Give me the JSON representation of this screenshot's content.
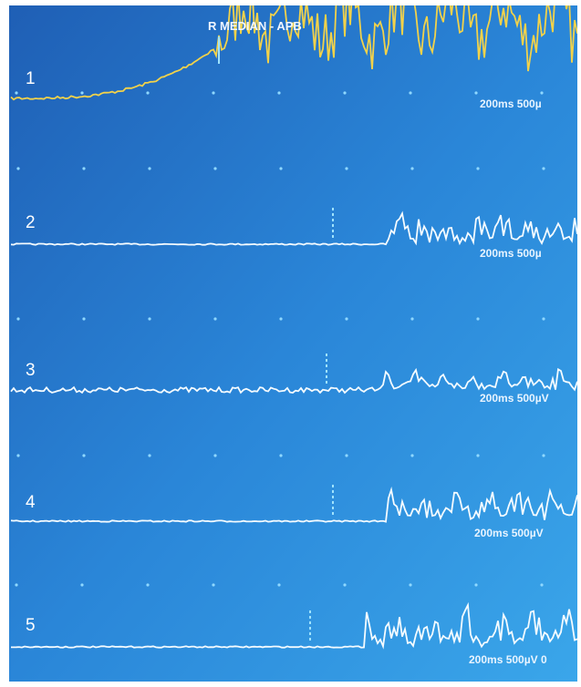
{
  "header": {
    "title": "R MEDIAN - APB"
  },
  "traces": [
    {
      "label": "1",
      "scale": "200ms 500µ"
    },
    {
      "label": "2",
      "scale": "200ms 500µ"
    },
    {
      "label": "3",
      "scale": "200ms 500µV"
    },
    {
      "label": "4",
      "scale": "200ms 500µV"
    },
    {
      "label": "5",
      "scale": "200ms 500µV 0"
    }
  ]
}
